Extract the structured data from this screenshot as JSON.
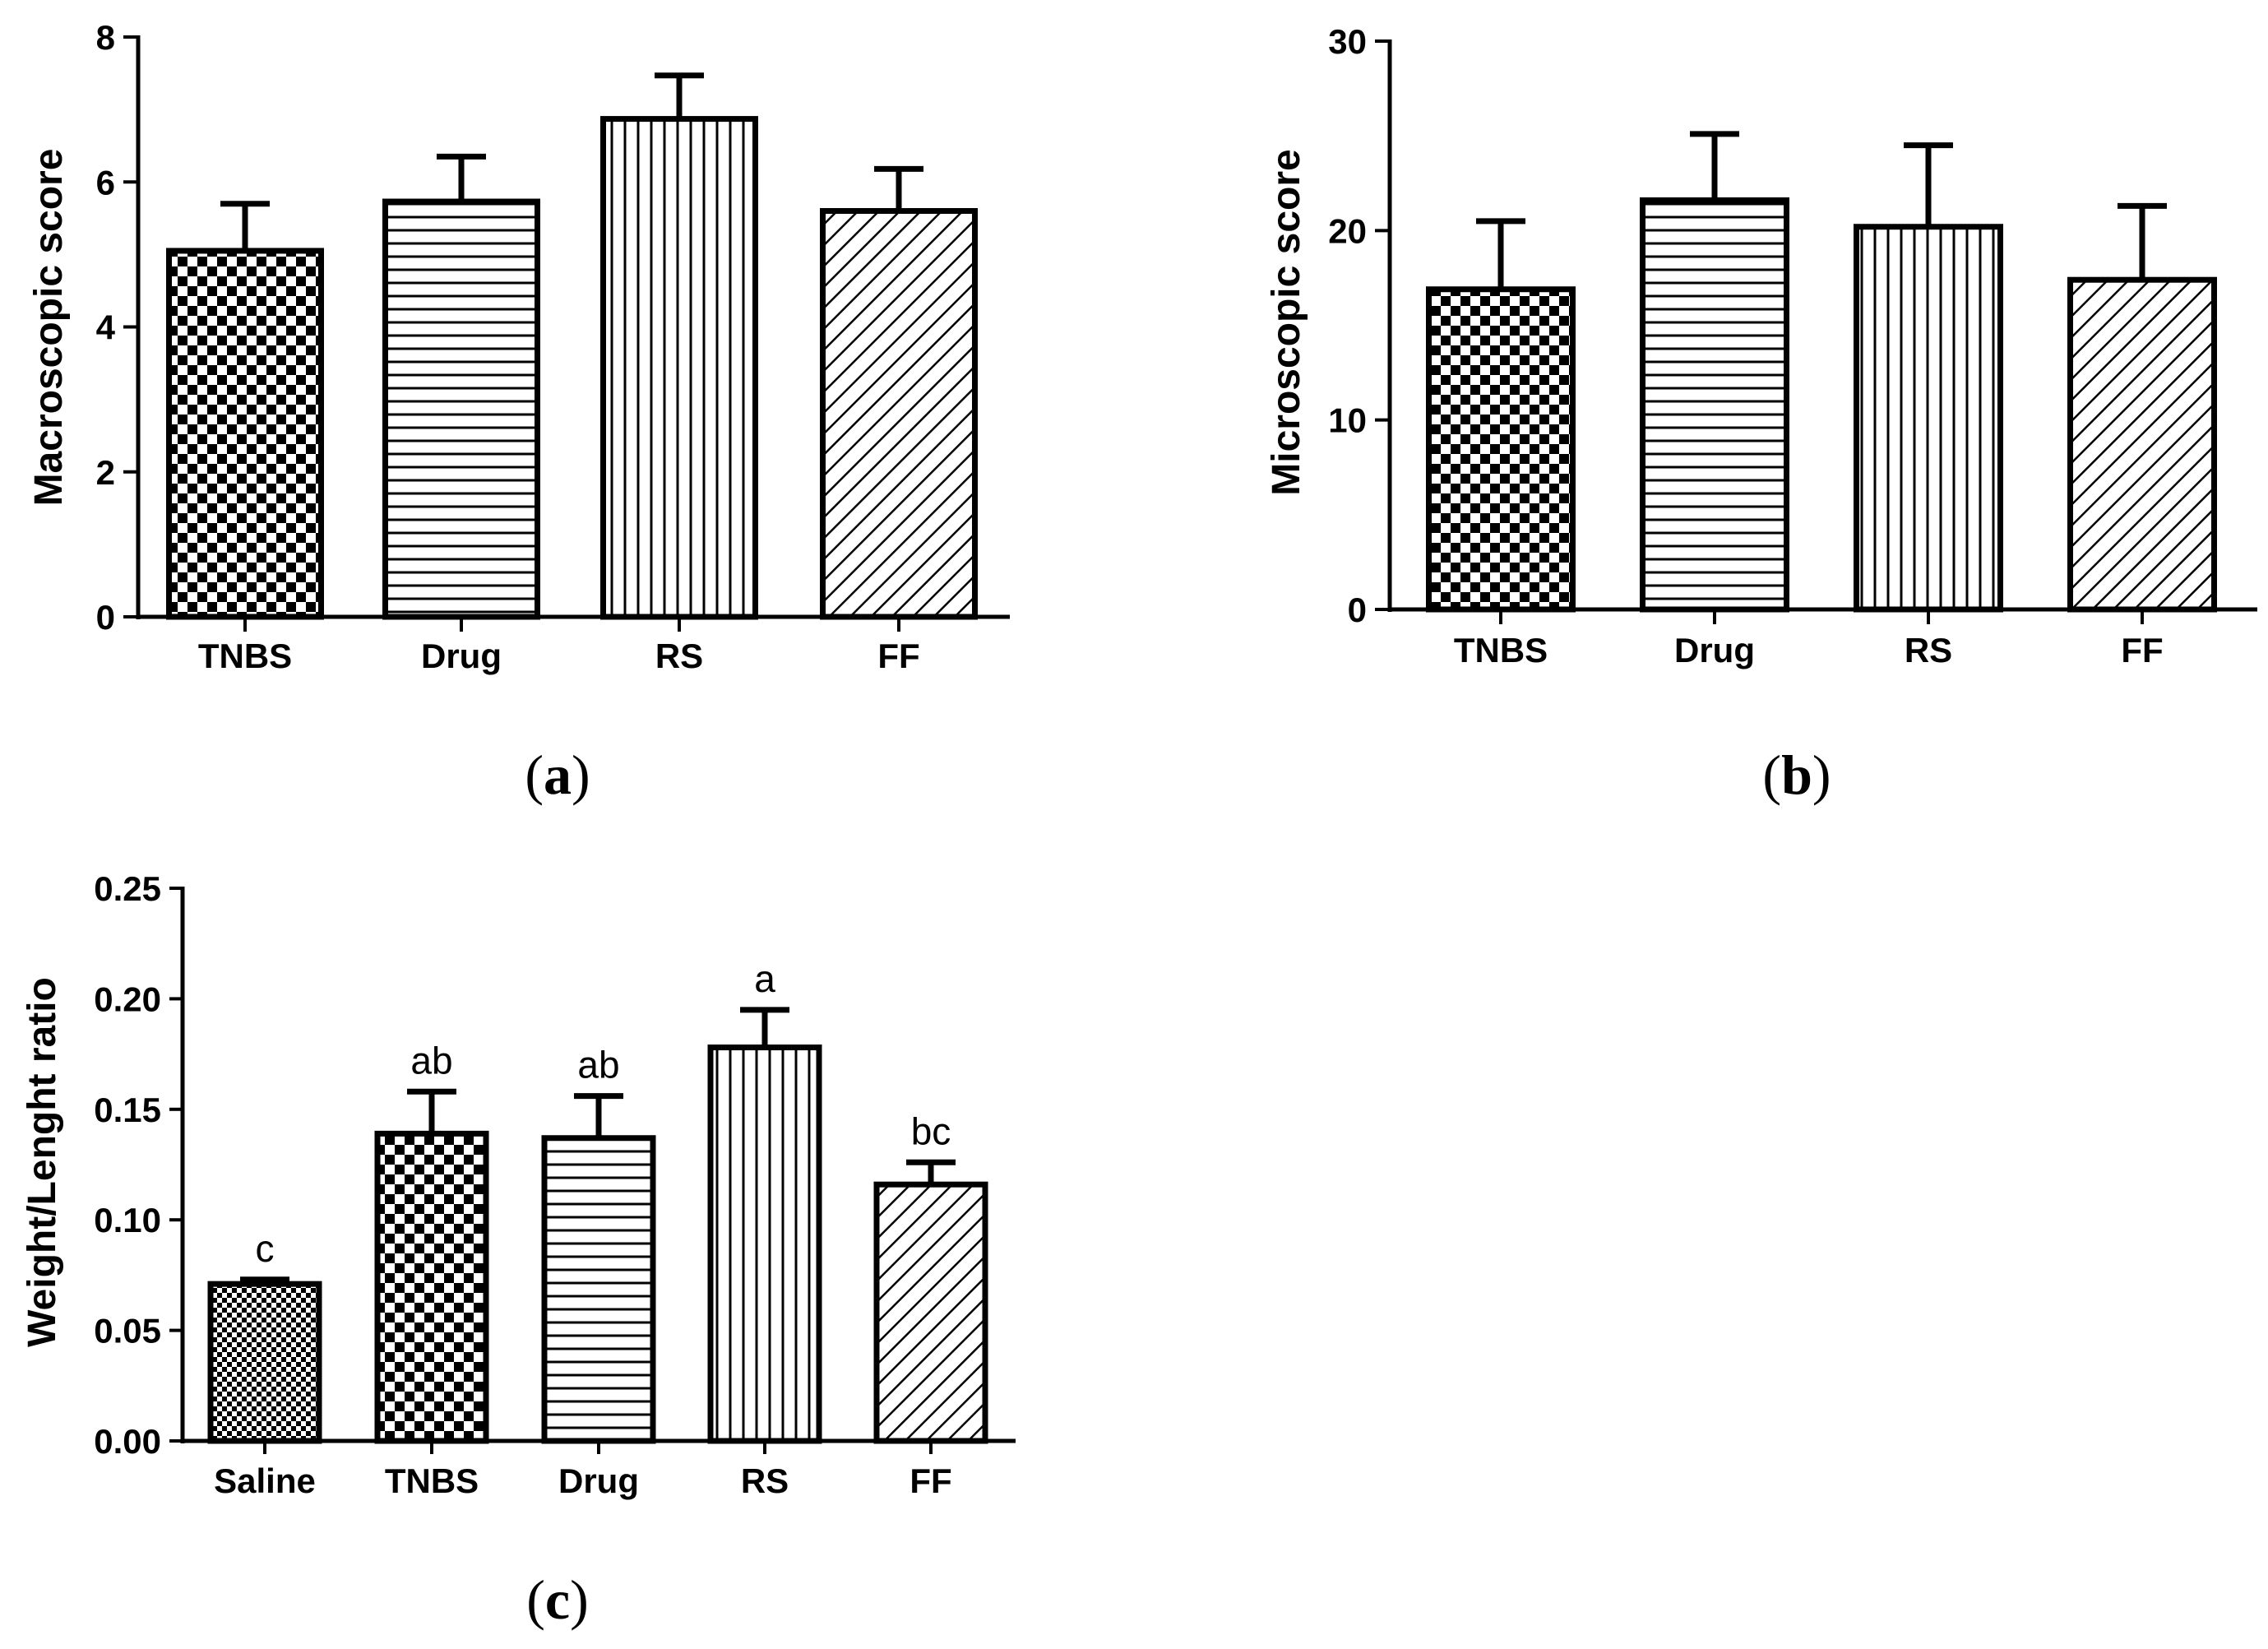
{
  "colors": {
    "ink": "#000000",
    "background": "#ffffff",
    "bar_fill": "#ffffff"
  },
  "chart_data": [
    {
      "id": "a",
      "type": "bar",
      "panel_label": "a",
      "title": "",
      "xlabel": "",
      "ylabel": "Macroscopic score",
      "ylim": [
        0,
        8
      ],
      "yticks": [
        0,
        2,
        4,
        6,
        8
      ],
      "ytick_labels": [
        "0",
        "2",
        "4",
        "6",
        "8"
      ],
      "categories": [
        "TNBS",
        "Drug",
        "RS",
        "FF"
      ],
      "values": [
        5.05,
        5.73,
        6.87,
        5.6
      ],
      "errors": [
        0.65,
        0.62,
        0.6,
        0.58
      ],
      "patterns": [
        "checker",
        "hlines",
        "vlines",
        "diag"
      ],
      "letters": []
    },
    {
      "id": "b",
      "type": "bar",
      "panel_label": "b",
      "title": "",
      "xlabel": "",
      "ylabel": "Microscopic score",
      "ylim": [
        0,
        30
      ],
      "yticks": [
        0,
        10,
        20,
        30
      ],
      "ytick_labels": [
        "0",
        "10",
        "20",
        "30"
      ],
      "categories": [
        "TNBS",
        "Drug",
        "RS",
        "FF"
      ],
      "values": [
        16.9,
        21.6,
        20.2,
        17.4
      ],
      "errors": [
        3.6,
        3.5,
        4.3,
        3.9
      ],
      "patterns": [
        "checker",
        "hlines",
        "vlines",
        "diag"
      ],
      "letters": []
    },
    {
      "id": "c",
      "type": "bar",
      "panel_label": "c",
      "title": "",
      "xlabel": "",
      "ylabel": "Weight/Lenght ratio",
      "ylim": [
        0,
        0.25
      ],
      "yticks": [
        0,
        0.05,
        0.1,
        0.15,
        0.2,
        0.25
      ],
      "ytick_labels": [
        "0.00",
        "0.05",
        "0.10",
        "0.15",
        "0.20",
        "0.25"
      ],
      "categories": [
        "Saline",
        "TNBS",
        "Drug",
        "RS",
        "FF"
      ],
      "values": [
        0.071,
        0.139,
        0.137,
        0.178,
        0.116
      ],
      "errors": [
        0.002,
        0.019,
        0.019,
        0.017,
        0.01
      ],
      "patterns": [
        "finecheck",
        "checker",
        "hlines",
        "vlines",
        "diag"
      ],
      "letters": [
        "c",
        "ab",
        "ab",
        "a",
        "bc"
      ]
    }
  ]
}
